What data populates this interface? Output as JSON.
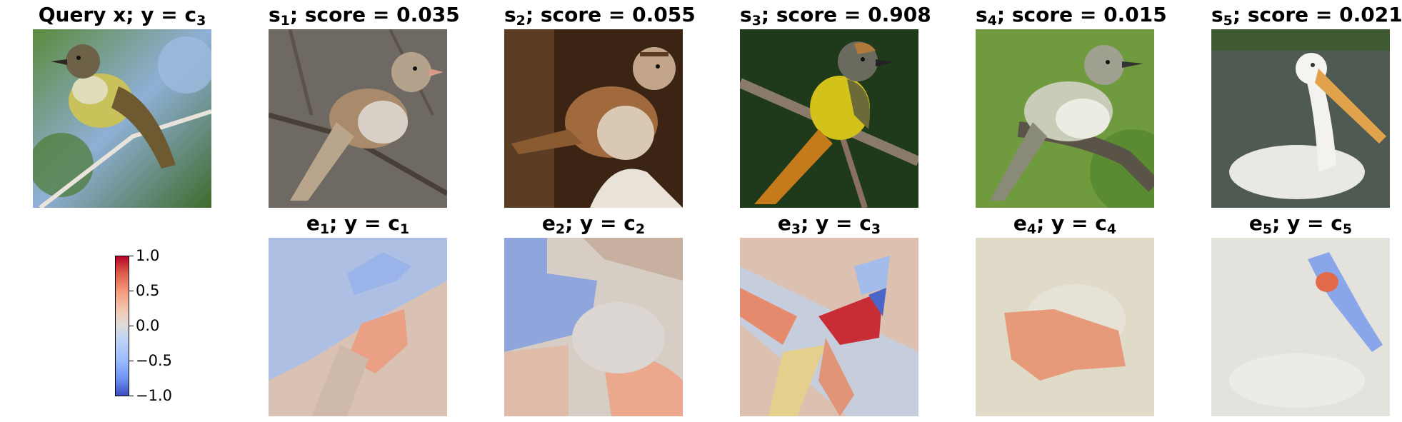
{
  "query": {
    "title_main": "Query x; y = c",
    "title_sub": "3",
    "icon": "bird-photo"
  },
  "candidates": [
    {
      "name": "s",
      "sub": "1",
      "score_text": "; score = 0.035",
      "score": 0.035,
      "icon": "bird-photo"
    },
    {
      "name": "s",
      "sub": "2",
      "score_text": "; score = 0.055",
      "score": 0.055,
      "icon": "bird-photo"
    },
    {
      "name": "s",
      "sub": "3",
      "score_text": "; score = 0.908",
      "score": 0.908,
      "icon": "bird-photo"
    },
    {
      "name": "s",
      "sub": "4",
      "score_text": "; score = 0.015",
      "score": 0.015,
      "icon": "bird-photo"
    },
    {
      "name": "s",
      "sub": "5",
      "score_text": "; score = 0.021",
      "score": 0.021,
      "icon": "pelican-photo"
    }
  ],
  "explanations": [
    {
      "name": "e",
      "sub": "1",
      "label": "; y = c",
      "label_sub": "1",
      "icon": "heatmap-overlay"
    },
    {
      "name": "e",
      "sub": "2",
      "label": "; y = c",
      "label_sub": "2",
      "icon": "heatmap-overlay"
    },
    {
      "name": "e",
      "sub": "3",
      "label": "; y = c",
      "label_sub": "3",
      "icon": "heatmap-overlay"
    },
    {
      "name": "e",
      "sub": "4",
      "label": "; y = c",
      "label_sub": "4",
      "icon": "heatmap-overlay"
    },
    {
      "name": "e",
      "sub": "5",
      "label": "; y = c",
      "label_sub": "5",
      "icon": "heatmap-overlay"
    }
  ],
  "colorbar": {
    "colormap": "coolwarm",
    "min": -1.0,
    "max": 1.0,
    "ticks": [
      "1.0",
      "0.5",
      "0.0",
      "−0.5",
      "−1.0"
    ],
    "colors": {
      "high": "#b40426",
      "mid": "#dddcdc",
      "low": "#3b4cc0"
    }
  }
}
